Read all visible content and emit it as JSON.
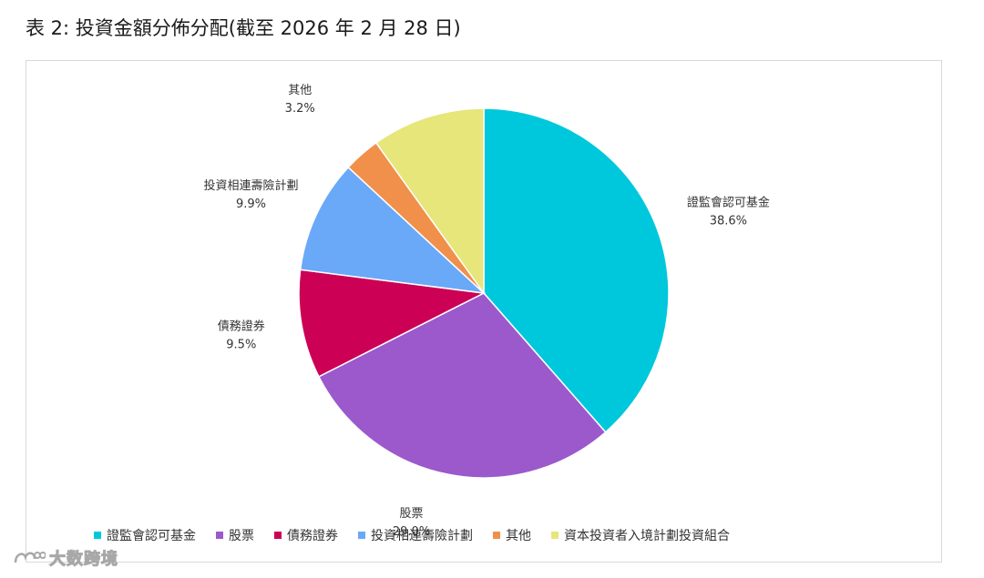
{
  "title": "表 2: 投資金額分佈分配(截至 2026 年 2 月 28 日)",
  "watermark": {
    "text": "大数跨境"
  },
  "chart_data": {
    "type": "pie",
    "start_angle_deg": 0,
    "direction": "clockwise",
    "legend_position": "bottom",
    "slices": [
      {
        "name": "證監會認可基金",
        "value": 38.6,
        "label": "38.6%",
        "color": "#00C8DC"
      },
      {
        "name": "股票",
        "value": 29.0,
        "label": "29.0%",
        "color": "#9B59CC"
      },
      {
        "name": "債務證券",
        "value": 9.5,
        "label": "9.5%",
        "color": "#CC0055"
      },
      {
        "name": "投資相連壽險計劃",
        "value": 9.9,
        "label": "9.9%",
        "color": "#6AA8F8"
      },
      {
        "name": "其他",
        "value": 3.2,
        "label": "3.2%",
        "color": "#F0904A"
      },
      {
        "name": "資本投資者入境計劃投資組合",
        "value": 9.9,
        "label": "9.9%",
        "color": "#E6E67A"
      }
    ]
  }
}
